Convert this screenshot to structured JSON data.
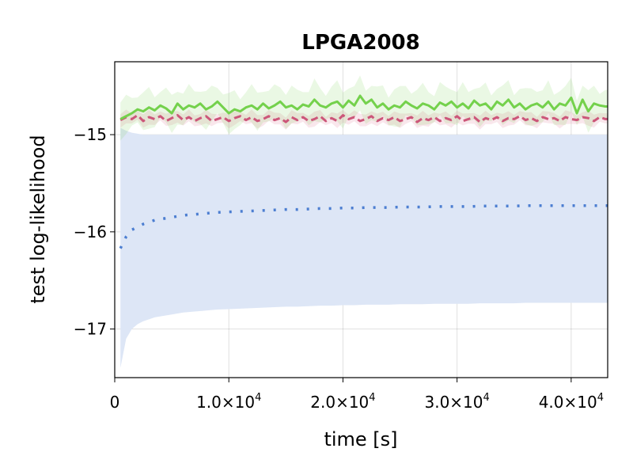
{
  "chart_data": {
    "type": "line",
    "title": "LPGA2008",
    "xlabel": "time [s]",
    "ylabel": "test log-likelihood",
    "xlim": [
      0,
      43200
    ],
    "ylim": [
      -17.5,
      -14.25
    ],
    "grid": true,
    "xticks": [
      {
        "value": 0,
        "label": "0",
        "exp": ""
      },
      {
        "value": 10000,
        "label": "1.0×10",
        "exp": "4"
      },
      {
        "value": 20000,
        "label": "2.0×10",
        "exp": "4"
      },
      {
        "value": 30000,
        "label": "3.0×10",
        "exp": "4"
      },
      {
        "value": 40000,
        "label": "4.0×10",
        "exp": "4"
      }
    ],
    "yticks": [
      {
        "value": -15,
        "label": "−15"
      },
      {
        "value": -16,
        "label": "−16"
      },
      {
        "value": -17,
        "label": "−17"
      }
    ],
    "series": [
      {
        "color": "#74d14c",
        "dash": "solid",
        "band_color": "#74d14c",
        "band_halfwidth": 0.17,
        "x": [
          500,
          1000,
          1500,
          2000,
          2500,
          3000,
          3500,
          4000,
          4500,
          5000,
          5500,
          6000,
          6500,
          7000,
          7500,
          8000,
          8500,
          9000,
          9500,
          10000,
          10500,
          11000,
          11500,
          12000,
          12500,
          13000,
          13500,
          14000,
          14500,
          15000,
          15500,
          16000,
          16500,
          17000,
          17500,
          18000,
          18500,
          19000,
          19500,
          20000,
          20500,
          21000,
          21500,
          22000,
          22500,
          23000,
          23500,
          24000,
          24500,
          25000,
          25500,
          26000,
          26500,
          27000,
          27500,
          28000,
          28500,
          29000,
          29500,
          30000,
          30500,
          31000,
          31500,
          32000,
          32500,
          33000,
          33500,
          34000,
          34500,
          35000,
          35500,
          36000,
          36500,
          37000,
          37500,
          38000,
          38500,
          39000,
          39500,
          40000,
          40500,
          41000,
          41500,
          42000,
          42500,
          43000
        ],
        "y": [
          -14.84,
          -14.81,
          -14.78,
          -14.74,
          -14.76,
          -14.72,
          -14.75,
          -14.7,
          -14.73,
          -14.78,
          -14.68,
          -14.74,
          -14.7,
          -14.72,
          -14.68,
          -14.74,
          -14.71,
          -14.66,
          -14.72,
          -14.78,
          -14.74,
          -14.76,
          -14.72,
          -14.7,
          -14.74,
          -14.68,
          -14.73,
          -14.7,
          -14.66,
          -14.72,
          -14.7,
          -14.74,
          -14.69,
          -14.71,
          -14.64,
          -14.7,
          -14.72,
          -14.68,
          -14.66,
          -14.72,
          -14.65,
          -14.7,
          -14.6,
          -14.68,
          -14.64,
          -14.72,
          -14.68,
          -14.74,
          -14.7,
          -14.72,
          -14.66,
          -14.7,
          -14.73,
          -14.68,
          -14.7,
          -14.74,
          -14.67,
          -14.7,
          -14.66,
          -14.72,
          -14.68,
          -14.73,
          -14.65,
          -14.7,
          -14.68,
          -14.74,
          -14.66,
          -14.7,
          -14.64,
          -14.72,
          -14.68,
          -14.74,
          -14.7,
          -14.68,
          -14.72,
          -14.66,
          -14.74,
          -14.68,
          -14.7,
          -14.62,
          -14.78,
          -14.64,
          -14.76,
          -14.68,
          -14.7,
          -14.71
        ]
      },
      {
        "color": "#cc5679",
        "dash": "dashed",
        "band_color": "#e8a0b4",
        "band_halfwidth": 0.06,
        "x": [
          500,
          1000,
          1500,
          2000,
          2500,
          3000,
          3500,
          4000,
          4500,
          5000,
          5500,
          6000,
          6500,
          7000,
          7500,
          8000,
          8500,
          9000,
          9500,
          10000,
          10500,
          11000,
          11500,
          12000,
          12500,
          13000,
          13500,
          14000,
          14500,
          15000,
          15500,
          16000,
          16500,
          17000,
          17500,
          18000,
          18500,
          19000,
          19500,
          20000,
          20500,
          21000,
          21500,
          22000,
          22500,
          23000,
          23500,
          24000,
          24500,
          25000,
          25500,
          26000,
          26500,
          27000,
          27500,
          28000,
          28500,
          29000,
          29500,
          30000,
          30500,
          31000,
          31500,
          32000,
          32500,
          33000,
          33500,
          34000,
          34500,
          35000,
          35500,
          36000,
          36500,
          37000,
          37500,
          38000,
          38500,
          39000,
          39500,
          40000,
          40500,
          41000,
          41500,
          42000,
          42500,
          43000
        ],
        "y": [
          -14.85,
          -14.82,
          -14.84,
          -14.8,
          -14.86,
          -14.82,
          -14.84,
          -14.81,
          -14.86,
          -14.83,
          -14.8,
          -14.85,
          -14.82,
          -14.86,
          -14.83,
          -14.81,
          -14.86,
          -14.84,
          -14.82,
          -14.86,
          -14.83,
          -14.81,
          -14.85,
          -14.82,
          -14.86,
          -14.84,
          -14.81,
          -14.85,
          -14.83,
          -14.87,
          -14.82,
          -14.85,
          -14.82,
          -14.86,
          -14.84,
          -14.81,
          -14.86,
          -14.83,
          -14.86,
          -14.8,
          -14.84,
          -14.82,
          -14.86,
          -14.84,
          -14.81,
          -14.86,
          -14.83,
          -14.85,
          -14.82,
          -14.86,
          -14.84,
          -14.82,
          -14.87,
          -14.83,
          -14.85,
          -14.82,
          -14.86,
          -14.83,
          -14.85,
          -14.81,
          -14.86,
          -14.84,
          -14.82,
          -14.87,
          -14.83,
          -14.85,
          -14.82,
          -14.86,
          -14.83,
          -14.84,
          -14.81,
          -14.85,
          -14.83,
          -14.86,
          -14.82,
          -14.84,
          -14.83,
          -14.86,
          -14.82,
          -14.84,
          -14.85,
          -14.82,
          -14.83,
          -14.86,
          -14.82,
          -14.84
        ]
      },
      {
        "color": "#4c7ed1",
        "dash": "dotted",
        "band_color": "#dde6f6",
        "x": [
          500,
          1000,
          1500,
          2000,
          2500,
          3000,
          3500,
          4000,
          5000,
          6000,
          7000,
          8000,
          9000,
          10000,
          11000,
          12000,
          13000,
          14000,
          15000,
          16000,
          17000,
          18000,
          19000,
          20000,
          21000,
          22000,
          23000,
          24000,
          25000,
          26000,
          27000,
          28000,
          29000,
          30000,
          31000,
          32000,
          33000,
          34000,
          35000,
          36000,
          37000,
          38000,
          39000,
          40000,
          41000,
          42000,
          43000
        ],
        "y": [
          -16.17,
          -16.05,
          -15.98,
          -15.95,
          -15.92,
          -15.9,
          -15.88,
          -15.87,
          -15.85,
          -15.83,
          -15.82,
          -15.81,
          -15.8,
          -15.795,
          -15.79,
          -15.785,
          -15.78,
          -15.775,
          -15.77,
          -15.77,
          -15.765,
          -15.76,
          -15.76,
          -15.755,
          -15.755,
          -15.75,
          -15.75,
          -15.75,
          -15.745,
          -15.745,
          -15.745,
          -15.74,
          -15.74,
          -15.74,
          -15.74,
          -15.735,
          -15.735,
          -15.735,
          -15.735,
          -15.73,
          -15.73,
          -15.73,
          -15.73,
          -15.73,
          -15.73,
          -15.73,
          -15.73
        ],
        "band_upper": [
          -14.93,
          -14.96,
          -14.98,
          -14.99,
          -15.0,
          -15.0,
          -15.0,
          -15.0,
          -15.0,
          -15.0,
          -15.0,
          -15.0,
          -15.0,
          -15.0,
          -15.0,
          -15.0,
          -15.0,
          -15.0,
          -15.0,
          -15.0,
          -15.0,
          -15.0,
          -15.0,
          -15.0,
          -15.0,
          -15.0,
          -15.0,
          -15.0,
          -15.0,
          -15.0,
          -15.0,
          -15.0,
          -15.0,
          -15.0,
          -15.0,
          -15.0,
          -15.0,
          -15.0,
          -15.0,
          -15.0,
          -15.0,
          -15.0,
          -15.0,
          -15.0,
          -15.0,
          -15.0,
          -15.0
        ],
        "band_lower": [
          -17.4,
          -17.1,
          -17.0,
          -16.95,
          -16.92,
          -16.9,
          -16.88,
          -16.87,
          -16.85,
          -16.83,
          -16.82,
          -16.81,
          -16.8,
          -16.795,
          -16.79,
          -16.785,
          -16.78,
          -16.775,
          -16.77,
          -16.77,
          -16.765,
          -16.76,
          -16.76,
          -16.755,
          -16.755,
          -16.75,
          -16.75,
          -16.75,
          -16.745,
          -16.745,
          -16.745,
          -16.74,
          -16.74,
          -16.74,
          -16.74,
          -16.735,
          -16.735,
          -16.735,
          -16.735,
          -16.73,
          -16.73,
          -16.73,
          -16.73,
          -16.73,
          -16.73,
          -16.73,
          -16.73
        ]
      }
    ]
  }
}
